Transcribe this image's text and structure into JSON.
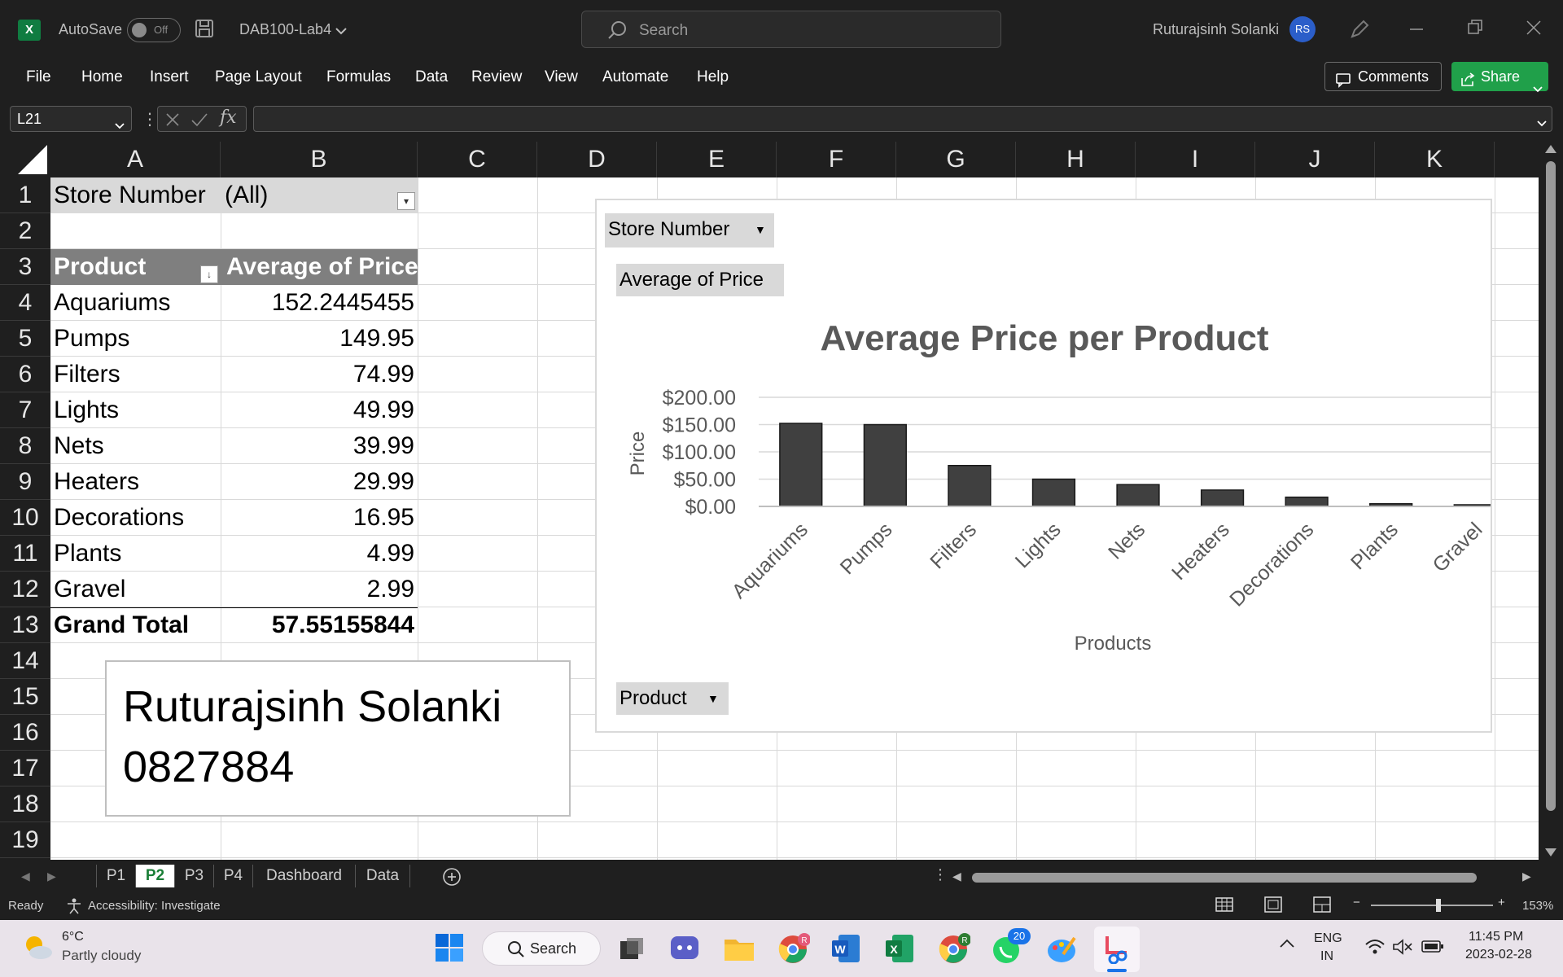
{
  "titlebar": {
    "autosave_label": "AutoSave",
    "autosave_state": "Off",
    "filename": "DAB100-Lab4",
    "search_placeholder": "Search",
    "user_name": "Ruturajsinh Solanki",
    "user_initials": "RS"
  },
  "ribbon": {
    "tabs": [
      "File",
      "Home",
      "Insert",
      "Page Layout",
      "Formulas",
      "Data",
      "Review",
      "View",
      "Automate",
      "Help"
    ],
    "comments_label": "Comments",
    "share_label": "Share"
  },
  "formula_bar": {
    "name_box": "L21",
    "fx": "fx",
    "formula": ""
  },
  "columns": [
    "A",
    "B",
    "C",
    "D",
    "E",
    "F",
    "G",
    "H",
    "I",
    "J",
    "K"
  ],
  "rows": [
    "1",
    "2",
    "3",
    "4",
    "5",
    "6",
    "7",
    "8",
    "9",
    "10",
    "11",
    "12",
    "13",
    "14",
    "15",
    "16",
    "17",
    "18",
    "19"
  ],
  "pivot": {
    "filter_label": "Store Number",
    "filter_value": "(All)",
    "header_product": "Product",
    "header_value": "Average of Price",
    "rows": [
      {
        "product": "Aquariums",
        "value": "152.2445455"
      },
      {
        "product": "Pumps",
        "value": "149.95"
      },
      {
        "product": "Filters",
        "value": "74.99"
      },
      {
        "product": "Lights",
        "value": "49.99"
      },
      {
        "product": "Nets",
        "value": "39.99"
      },
      {
        "product": "Heaters",
        "value": "29.99"
      },
      {
        "product": "Decorations",
        "value": "16.95"
      },
      {
        "product": "Plants",
        "value": "4.99"
      },
      {
        "product": "Gravel",
        "value": "2.99"
      }
    ],
    "total_label": "Grand Total",
    "total_value": "57.55155844"
  },
  "textbox": {
    "line1": "Ruturajsinh Solanki",
    "line2": "0827884"
  },
  "chart_fields": {
    "filter": "Store Number",
    "values": "Average of Price",
    "axis": "Product"
  },
  "chart_data": {
    "type": "bar",
    "title": "Average Price per Product",
    "xlabel": "Products",
    "ylabel": "Price",
    "categories": [
      "Aquariums",
      "Pumps",
      "Filters",
      "Lights",
      "Nets",
      "Heaters",
      "Decorations",
      "Plants",
      "Gravel"
    ],
    "values": [
      152.2445455,
      149.95,
      74.99,
      49.99,
      39.99,
      29.99,
      16.95,
      4.99,
      2.99
    ],
    "ylim": [
      0,
      200
    ],
    "yticks": [
      "$0.00",
      "$50.00",
      "$100.00",
      "$150.00",
      "$200.00"
    ],
    "grid": true,
    "bar_color": "#404040"
  },
  "sheet_tabs": [
    "P1",
    "P2",
    "P3",
    "P4",
    "Dashboard",
    "Data"
  ],
  "active_tab": "P2",
  "status": {
    "ready": "Ready",
    "accessibility": "Accessibility: Investigate",
    "zoom": "153%"
  },
  "taskbar": {
    "weather_temp": "6°C",
    "weather_desc": "Partly cloudy",
    "search_label": "Search",
    "lang1": "ENG",
    "lang2": "IN",
    "time": "11:45 PM",
    "date": "2023-02-28",
    "whatsapp_badge": "20"
  },
  "colors": {
    "excel_green": "#107c41",
    "share_green": "#20a04a",
    "pivot_header": "#7f7f7f"
  }
}
